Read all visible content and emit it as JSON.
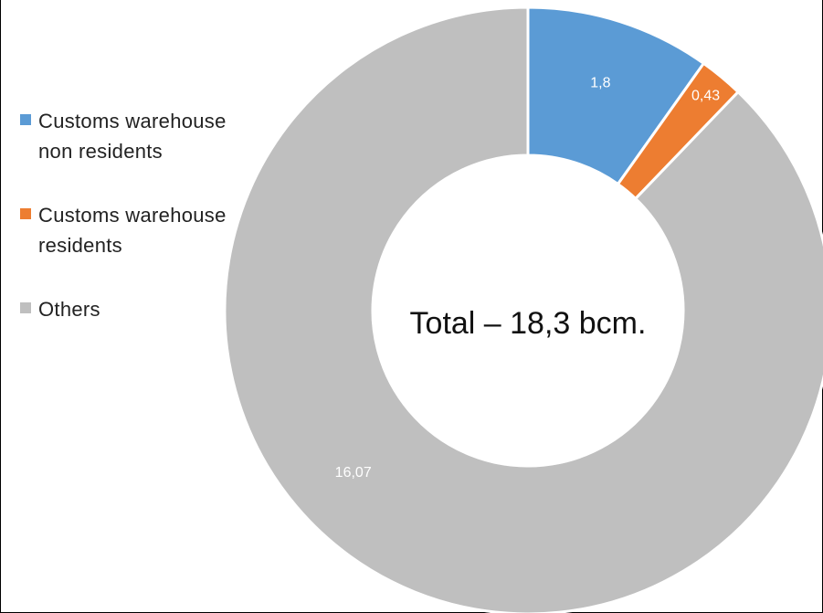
{
  "chart_data": {
    "type": "pie",
    "variant": "donut",
    "center_label": "Total – 18,3 bcm.",
    "legend_placement": "left",
    "categories": [
      "Customs warehouse non residents",
      "Customs warehouse residents",
      "Others"
    ],
    "values": [
      1.8,
      0.43,
      16.07
    ],
    "data_labels": [
      "1,8",
      "0,43",
      "16,07"
    ],
    "colors": [
      "#5B9BD5",
      "#ED7D31",
      "#BFBFBF"
    ]
  }
}
